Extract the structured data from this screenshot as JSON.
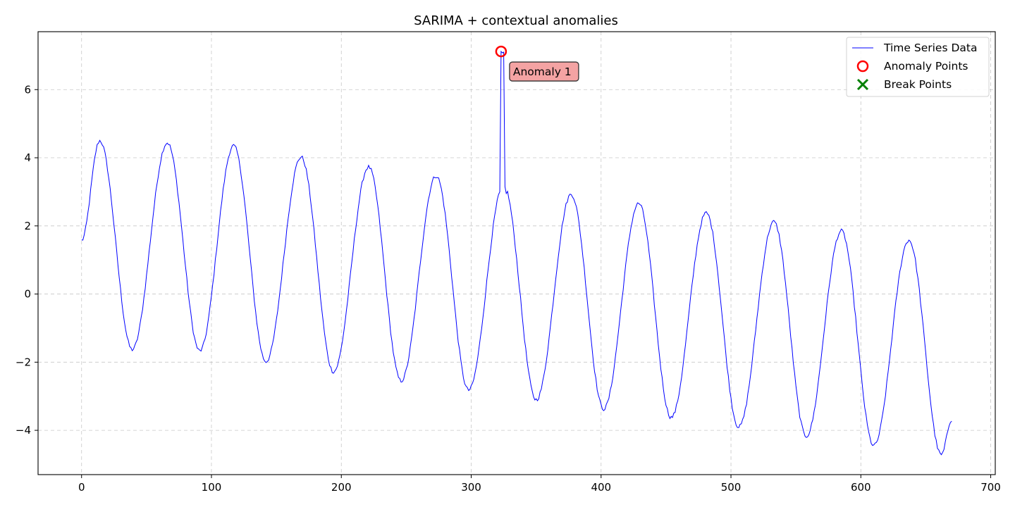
{
  "chart_data": {
    "type": "line",
    "title": "SARIMA + contextual anomalies",
    "xlabel": "",
    "ylabel": "",
    "xlim": [
      -33.5,
      703.5
    ],
    "ylim": [
      -5.3,
      7.7
    ],
    "xticks": [
      0,
      100,
      200,
      300,
      400,
      500,
      600,
      700
    ],
    "yticks": [
      -4,
      -2,
      0,
      2,
      4,
      6
    ],
    "grid": true,
    "legend_position": "top-right",
    "n_points": 671,
    "series": [
      {
        "name": "Time Series Data",
        "color": "#0000ff",
        "description_params": {
          "period": 52,
          "start_value": 1.57
        },
        "peaks": [
          {
            "x": 14,
            "y": 4.5
          },
          {
            "x": 66,
            "y": 4.44
          },
          {
            "x": 117,
            "y": 4.35
          },
          {
            "x": 169,
            "y": 4.02
          },
          {
            "x": 221,
            "y": 3.73
          },
          {
            "x": 273,
            "y": 3.47
          },
          {
            "x": 325,
            "y": 3.2
          },
          {
            "x": 377,
            "y": 2.93
          },
          {
            "x": 429,
            "y": 2.66
          },
          {
            "x": 481,
            "y": 2.38
          },
          {
            "x": 533,
            "y": 2.12
          },
          {
            "x": 585,
            "y": 1.85
          },
          {
            "x": 637,
            "y": 1.58
          }
        ],
        "troughs": [
          {
            "x": 39,
            "y": -1.63
          },
          {
            "x": 91,
            "y": -1.67
          },
          {
            "x": 142,
            "y": -1.98
          },
          {
            "x": 194,
            "y": -2.28
          },
          {
            "x": 246,
            "y": -2.55
          },
          {
            "x": 298,
            "y": -2.82
          },
          {
            "x": 350,
            "y": -3.1
          },
          {
            "x": 402,
            "y": -3.37
          },
          {
            "x": 454,
            "y": -3.62
          },
          {
            "x": 506,
            "y": -3.9
          },
          {
            "x": 558,
            "y": -4.17
          },
          {
            "x": 610,
            "y": -4.45
          },
          {
            "x": 662,
            "y": -4.72
          }
        ],
        "end": {
          "x": 670,
          "y": -3.68
        },
        "spike": {
          "x": 323,
          "y": 7.12
        }
      },
      {
        "name": "Anomaly Points",
        "color": "#ff0000",
        "points": [
          {
            "x": 323,
            "y": 7.12
          }
        ]
      },
      {
        "name": "Break Points",
        "color": "#008000",
        "points": []
      }
    ],
    "annotations": [
      {
        "text": "Anomaly 1",
        "x": 323,
        "y": 7.12,
        "bg": "#f4a3a3"
      }
    ]
  }
}
